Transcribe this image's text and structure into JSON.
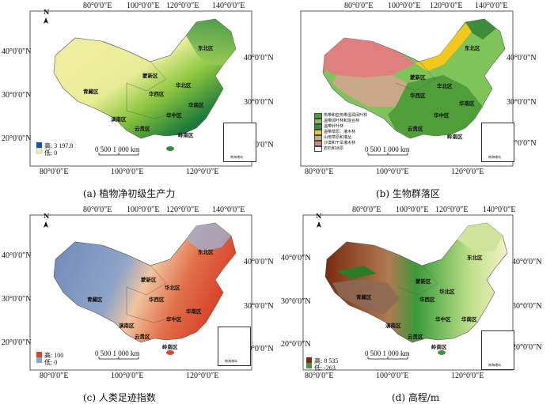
{
  "coords": {
    "top": [
      "80°0′0″E",
      "100°0′0″E",
      "120°0′0″E",
      "140°0′0″E"
    ],
    "bottom": [
      "80°0′0″E",
      "100°0′0″E",
      "120°0′0″E"
    ],
    "left": [
      "40°0′0″N",
      "30°0′0″N",
      "20°0′0″N"
    ],
    "right": [
      "40°0′0″N",
      "30°0′0″N",
      "20°0′0″N"
    ],
    "bottom_c": [
      "80°0′0″E",
      "100°0′0″E",
      "120°0′0″E"
    ],
    "right_c": [
      "40°0′0″N",
      "30°0′0″N",
      "20°0′0″N"
    ]
  },
  "north": "N",
  "regions": {
    "mengxin": "蒙新区",
    "dongbei": "东北区",
    "huabei": "华北区",
    "qingzang": "青藏区",
    "huaxi": "华西区",
    "huazhong": "华中区",
    "huanan": "华南区",
    "diannan": "滇南区",
    "yungui": "云贵区",
    "lingnan": "岭南区"
  },
  "scale": {
    "ticks": "0 500 1 000 km"
  },
  "inset_label": "南海诸岛",
  "panels": [
    {
      "caption": "(a)  植物净初级生产力",
      "legend": {
        "high_label": "高: 3 197.8",
        "low_label": "低: 0"
      },
      "colors": {
        "low": "#f2f0a8",
        "mid": "#8cc63f",
        "high": "#1f7a3a",
        "deep": "#1b4f9c"
      }
    },
    {
      "caption": "(b)  生物群落区",
      "legend": {
        "items": [
          {
            "label": "热带和亚热带湿润阔叶林",
            "color": "#4f9e3a"
          },
          {
            "label": "温带阔叶林和混合林",
            "color": "#7fc45a"
          },
          {
            "label": "温带针叶林",
            "color": "#3d8b3d"
          },
          {
            "label": "温带草原、灌木林",
            "color": "#f2c81a"
          },
          {
            "label": "山地草原和灌丛",
            "color": "#c9a889"
          },
          {
            "label": "沙漠和干旱灌木林",
            "color": "#e07f7f"
          },
          {
            "label": "岩石和冰原",
            "color": "#ffffff"
          }
        ]
      }
    },
    {
      "caption": "(c)  人类足迹指数",
      "legend": {
        "high_label": "高: 100",
        "low_label": "低: 0"
      },
      "colors": {
        "low": "#8fa4c8",
        "mid": "#f0c4a0",
        "high": "#d9452b"
      }
    },
    {
      "caption": "(d)  高程/m",
      "legend": {
        "high_label": "高: 8 535",
        "low_label": "低: -263"
      },
      "colors": {
        "low": "#f5f0c8",
        "mid": "#3a9a3a",
        "high": "#7a2a10",
        "peak": "#ffffff"
      }
    }
  ]
}
